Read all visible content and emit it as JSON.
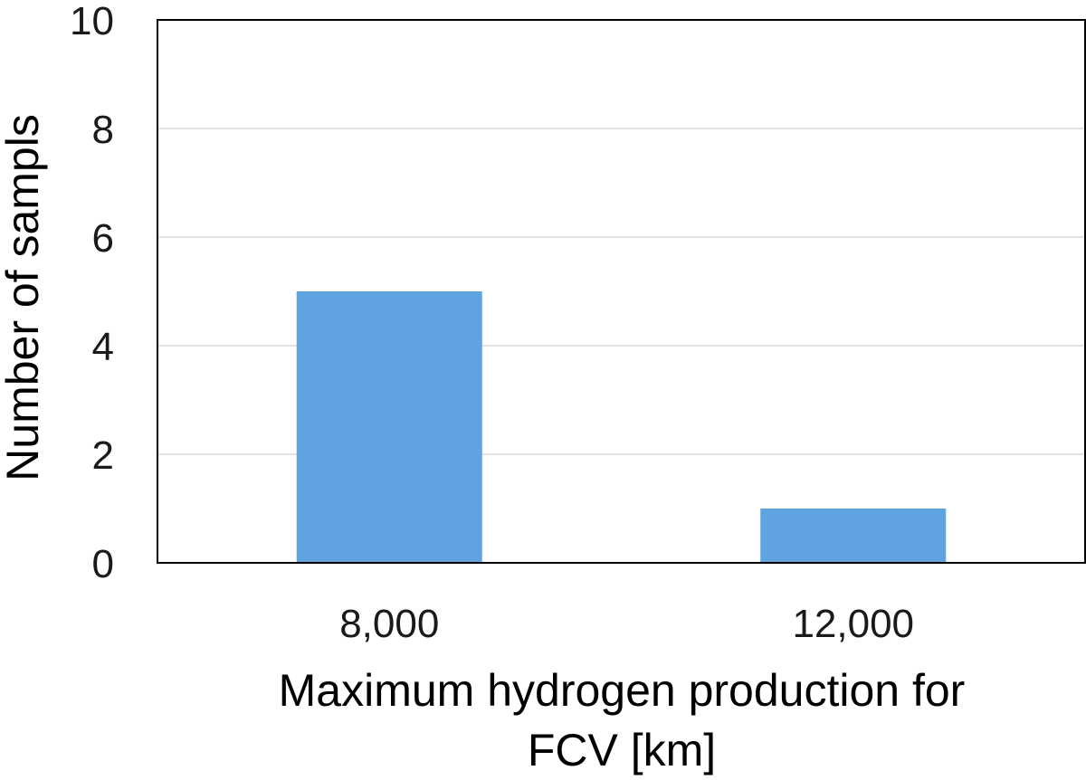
{
  "chart_data": {
    "type": "bar",
    "categories": [
      "8,000",
      "12,000"
    ],
    "values": [
      5,
      1
    ],
    "title": "",
    "xlabel_lines": [
      "Maximum hydrogen production for",
      "FCV [km]"
    ],
    "ylabel": "Number of sampls",
    "ylim": [
      0,
      10
    ],
    "yticks": [
      0,
      2,
      4,
      6,
      8,
      10
    ],
    "grid": true,
    "bar_color": "#5fa3e0"
  }
}
